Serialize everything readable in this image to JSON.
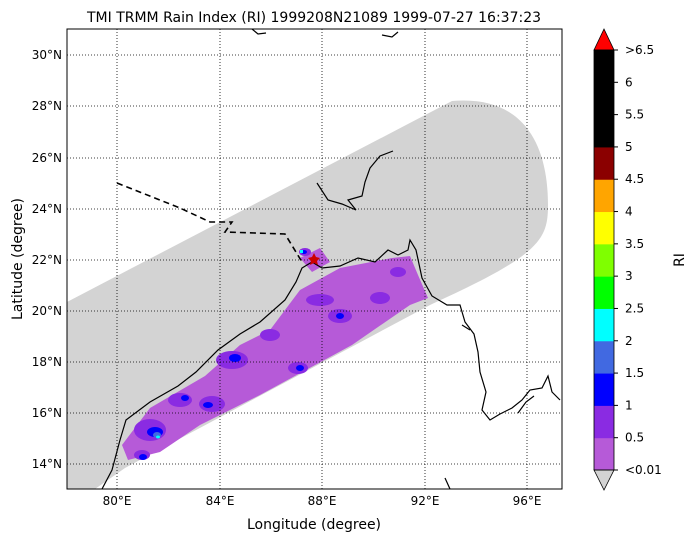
{
  "title": "TMI TRMM Rain Index (RI) 1999208N21089 1999-07-27 16:37:23",
  "x_axis_label": "Longitude (degree)",
  "y_axis_label": "Latitude (degree)",
  "x_ticks": [
    "80°E",
    "84°E",
    "88°E",
    "92°E",
    "96°E"
  ],
  "y_ticks": [
    "30°N",
    "28°N",
    "26°N",
    "24°N",
    "22°N",
    "20°N",
    "18°N",
    "16°N",
    "14°N"
  ],
  "colorbar": {
    "label": "RI",
    "tick_labels": [
      "<0.01",
      "0.5",
      "1",
      "1.5",
      "2",
      "2.5",
      "3",
      "3.5",
      "4",
      "4.5",
      "5",
      "5.5",
      "6",
      ">6.5"
    ],
    "colors": [
      "#b65ad8",
      "#8a2be2",
      "#0000ff",
      "#4169e1",
      "#00ffff",
      "#00ff00",
      "#7fff00",
      "#ffff00",
      "#ffa500",
      "#8b0000",
      "#000000",
      "#000000",
      "#000000"
    ],
    "over_color": "#ff0000",
    "under_color": "#d3d3d3"
  },
  "map": {
    "lon_range": [
      78,
      97.5
    ],
    "lat_range": [
      13,
      31
    ],
    "swath_color": "#d3d3d3",
    "storm_center": {
      "lon": 87.8,
      "lat": 22.0,
      "marker_color": "#cc0000"
    }
  }
}
